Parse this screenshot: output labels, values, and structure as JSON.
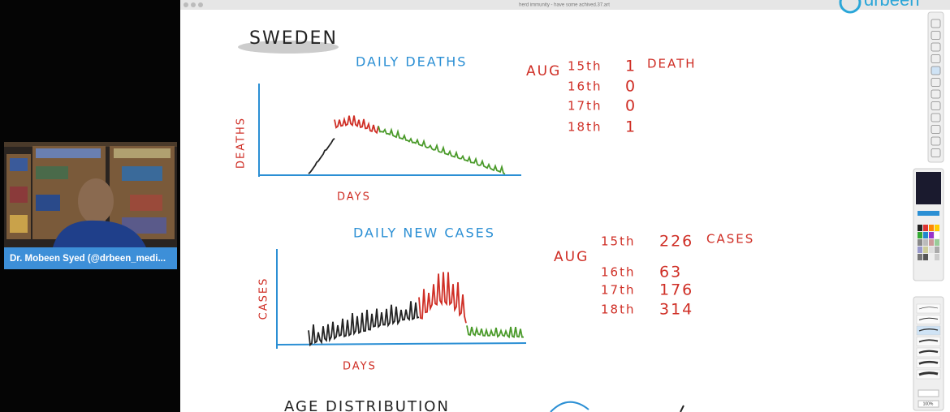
{
  "window": {
    "title": "herd immunity - have some achived.37.art"
  },
  "logo": "drbeen",
  "webcam": {
    "name": "Dr. Mobeen Syed (@drbeen_medi..."
  },
  "board": {
    "heading": "SWEDEN",
    "deaths": {
      "title": "DAILY DEATHS",
      "y_label": "DEATHS",
      "x_label": "DAYS",
      "month": "AUG",
      "rows": [
        {
          "day": "15th",
          "value": 1,
          "unit": "DEATH"
        },
        {
          "day": "16th",
          "value": 0
        },
        {
          "day": "17th",
          "value": 0
        },
        {
          "day": "18th",
          "value": 1
        }
      ]
    },
    "cases": {
      "title": "DAILY NEW CASES",
      "y_label": "CASES",
      "x_label": "DAYS",
      "month": "AUG",
      "rows": [
        {
          "day": "15th",
          "value": 226,
          "unit": "CASES"
        },
        {
          "day": "16th",
          "value": 63
        },
        {
          "day": "17th",
          "value": 176
        },
        {
          "day": "18th",
          "value": 314
        }
      ]
    },
    "next_heading": "AGE DISTRIBUTION"
  },
  "zoom": "100%"
}
